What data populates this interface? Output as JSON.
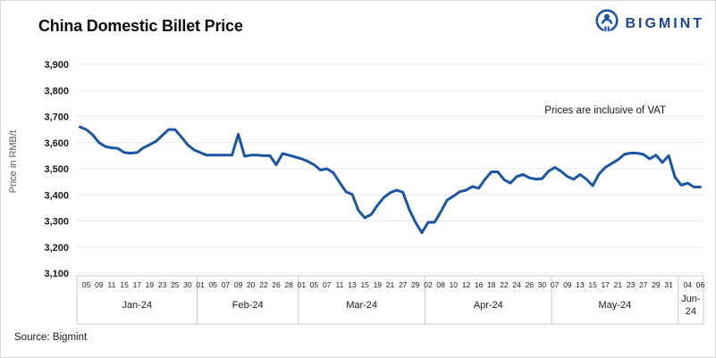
{
  "header": {
    "title": "China Domestic Billet Price",
    "logo_text": "BIGMINT"
  },
  "footer": {
    "source": "Source: Bigmint"
  },
  "chart_data": {
    "type": "line",
    "title": "China Domestic Billet Price",
    "ylabel": "Price in RMB/t",
    "annotation": "Prices are inclusive of VAT",
    "source": "Source: Bigmint",
    "ylim": [
      3100,
      3900
    ],
    "grid": "horizontal-only",
    "legend": "none",
    "colors": {
      "line": "#1b55a5",
      "logo": "#1a4697",
      "grid": "#e9e9e9",
      "axis_border": "#c9c9c9",
      "tick_text": "#1a1a1a"
    },
    "yticks": [
      {
        "label": "3,100",
        "value": 3100
      },
      {
        "label": "3,200",
        "value": 3200
      },
      {
        "label": "3,300",
        "value": 3300
      },
      {
        "label": "3,400",
        "value": 3400
      },
      {
        "label": "3,500",
        "value": 3500
      },
      {
        "label": "3,600",
        "value": 3600
      },
      {
        "label": "3,700",
        "value": 3700
      },
      {
        "label": "3,800",
        "value": 3800
      },
      {
        "label": "3,900",
        "value": 3900
      }
    ],
    "months": [
      {
        "label": "Jan-24",
        "points": [
          {
            "d": "",
            "v": 3660
          },
          {
            "d": "05",
            "v": 3650
          },
          {
            "d": "",
            "v": 3630
          },
          {
            "d": "09",
            "v": 3600
          },
          {
            "d": "",
            "v": 3585
          },
          {
            "d": "11",
            "v": 3580
          },
          {
            "d": "",
            "v": 3578
          },
          {
            "d": "15",
            "v": 3562
          },
          {
            "d": "",
            "v": 3560
          },
          {
            "d": "17",
            "v": 3562
          },
          {
            "d": "",
            "v": 3580
          },
          {
            "d": "19",
            "v": 3592
          },
          {
            "d": "",
            "v": 3605
          },
          {
            "d": "23",
            "v": 3628
          },
          {
            "d": "",
            "v": 3650
          },
          {
            "d": "25",
            "v": 3650
          },
          {
            "d": "",
            "v": 3622
          },
          {
            "d": "30",
            "v": 3592
          },
          {
            "d": "",
            "v": 3572
          }
        ]
      },
      {
        "label": "Feb-24",
        "points": [
          {
            "d": "01",
            "v": 3562
          },
          {
            "d": "",
            "v": 3552
          },
          {
            "d": "05",
            "v": 3552
          },
          {
            "d": "",
            "v": 3552
          },
          {
            "d": "07",
            "v": 3552
          },
          {
            "d": "",
            "v": 3552
          },
          {
            "d": "09",
            "v": 3632
          },
          {
            "d": "",
            "v": 3548
          },
          {
            "d": "20",
            "v": 3552
          },
          {
            "d": "",
            "v": 3552
          },
          {
            "d": "22",
            "v": 3550
          },
          {
            "d": "",
            "v": 3550
          },
          {
            "d": "26",
            "v": 3515
          },
          {
            "d": "",
            "v": 3558
          },
          {
            "d": "28",
            "v": 3552
          },
          {
            "d": "",
            "v": 3545
          }
        ]
      },
      {
        "label": "Mar-24",
        "points": [
          {
            "d": "01",
            "v": 3538
          },
          {
            "d": "",
            "v": 3528
          },
          {
            "d": "05",
            "v": 3515
          },
          {
            "d": "",
            "v": 3495
          },
          {
            "d": "07",
            "v": 3500
          },
          {
            "d": "",
            "v": 3485
          },
          {
            "d": "11",
            "v": 3448
          },
          {
            "d": "",
            "v": 3412
          },
          {
            "d": "13",
            "v": 3402
          },
          {
            "d": "",
            "v": 3340
          },
          {
            "d": "15",
            "v": 3312
          },
          {
            "d": "",
            "v": 3325
          },
          {
            "d": "19",
            "v": 3360
          },
          {
            "d": "",
            "v": 3390
          },
          {
            "d": "21",
            "v": 3408
          },
          {
            "d": "",
            "v": 3418
          },
          {
            "d": "27",
            "v": 3410
          },
          {
            "d": "",
            "v": 3345
          },
          {
            "d": "29",
            "v": 3295
          },
          {
            "d": "",
            "v": 3255
          }
        ]
      },
      {
        "label": "Apr-24",
        "points": [
          {
            "d": "02",
            "v": 3295
          },
          {
            "d": "",
            "v": 3295
          },
          {
            "d": "08",
            "v": 3335
          },
          {
            "d": "",
            "v": 3380
          },
          {
            "d": "10",
            "v": 3395
          },
          {
            "d": "",
            "v": 3412
          },
          {
            "d": "12",
            "v": 3418
          },
          {
            "d": "",
            "v": 3432
          },
          {
            "d": "16",
            "v": 3425
          },
          {
            "d": "",
            "v": 3460
          },
          {
            "d": "18",
            "v": 3488
          },
          {
            "d": "",
            "v": 3488
          },
          {
            "d": "22",
            "v": 3458
          },
          {
            "d": "",
            "v": 3445
          },
          {
            "d": "24",
            "v": 3470
          },
          {
            "d": "",
            "v": 3478
          },
          {
            "d": "26",
            "v": 3465
          },
          {
            "d": "",
            "v": 3460
          },
          {
            "d": "30",
            "v": 3462
          },
          {
            "d": "",
            "v": 3490
          }
        ]
      },
      {
        "label": "May-24",
        "points": [
          {
            "d": "07",
            "v": 3505
          },
          {
            "d": "",
            "v": 3490
          },
          {
            "d": "09",
            "v": 3470
          },
          {
            "d": "",
            "v": 3460
          },
          {
            "d": "13",
            "v": 3478
          },
          {
            "d": "",
            "v": 3460
          },
          {
            "d": "15",
            "v": 3435
          },
          {
            "d": "",
            "v": 3480
          },
          {
            "d": "17",
            "v": 3505
          },
          {
            "d": "",
            "v": 3520
          },
          {
            "d": "21",
            "v": 3535
          },
          {
            "d": "",
            "v": 3555
          },
          {
            "d": "23",
            "v": 3560
          },
          {
            "d": "",
            "v": 3560
          },
          {
            "d": "27",
            "v": 3555
          },
          {
            "d": "",
            "v": 3538
          },
          {
            "d": "29",
            "v": 3552
          },
          {
            "d": "",
            "v": 3524
          },
          {
            "d": "31",
            "v": 3550
          },
          {
            "d": "",
            "v": 3468
          }
        ]
      },
      {
        "label": "Jun-24",
        "points": [
          {
            "d": "",
            "v": 3437
          },
          {
            "d": "04",
            "v": 3445
          },
          {
            "d": "",
            "v": 3430
          },
          {
            "d": "06",
            "v": 3430
          }
        ]
      }
    ]
  }
}
